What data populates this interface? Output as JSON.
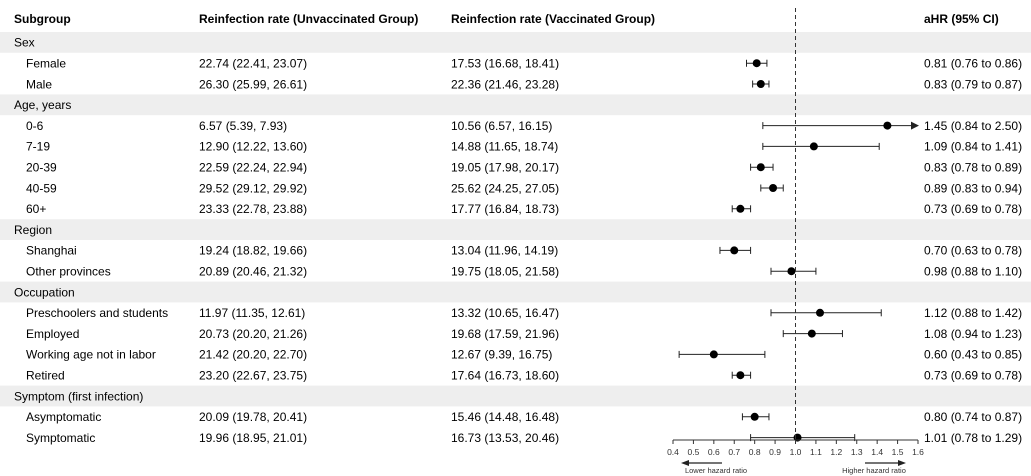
{
  "chart_data": {
    "type": "forest",
    "title": "",
    "columns": {
      "subgroup": "Subgroup",
      "unvaccinated": "Reinfection rate (Unvaccinated Group)",
      "vaccinated": "Reinfection rate (Vaccinated Group)",
      "ahr": "aHR (95% CI)"
    },
    "rows": [
      {
        "kind": "header",
        "label": "Sex"
      },
      {
        "kind": "data",
        "label": "Female",
        "unvac": "22.74 (22.41, 23.07)",
        "vac": "17.53 (16.68, 18.41)",
        "ahr_text": "0.81 (0.76 to 0.86)",
        "hr": 0.81,
        "lo": 0.76,
        "hi": 0.86
      },
      {
        "kind": "data",
        "label": "Male",
        "unvac": "26.30 (25.99, 26.61)",
        "vac": "22.36 (21.46, 23.28)",
        "ahr_text": "0.83 (0.79 to 0.87)",
        "hr": 0.83,
        "lo": 0.79,
        "hi": 0.87
      },
      {
        "kind": "header",
        "label": "Age, years"
      },
      {
        "kind": "data",
        "label": "0-6",
        "unvac": "6.57 (5.39, 7.93)",
        "vac": "10.56 (6.57, 16.15)",
        "ahr_text": "1.45 (0.84 to 2.50)",
        "hr": 1.45,
        "lo": 0.84,
        "hi": 2.5
      },
      {
        "kind": "data",
        "label": "7-19",
        "unvac": "12.90 (12.22, 13.60)",
        "vac": "14.88 (11.65, 18.74)",
        "ahr_text": "1.09 (0.84 to 1.41)",
        "hr": 1.09,
        "lo": 0.84,
        "hi": 1.41
      },
      {
        "kind": "data",
        "label": "20-39",
        "unvac": "22.59 (22.24, 22.94)",
        "vac": "19.05 (17.98, 20.17)",
        "ahr_text": "0.83 (0.78 to 0.89)",
        "hr": 0.83,
        "lo": 0.78,
        "hi": 0.89
      },
      {
        "kind": "data",
        "label": "40-59",
        "unvac": "29.52 (29.12, 29.92)",
        "vac": "25.62 (24.25, 27.05)",
        "ahr_text": "0.89 (0.83 to 0.94)",
        "hr": 0.89,
        "lo": 0.83,
        "hi": 0.94
      },
      {
        "kind": "data",
        "label": "60+",
        "unvac": "23.33 (22.78, 23.88)",
        "vac": "17.77 (16.84, 18.73)",
        "ahr_text": "0.73 (0.69 to 0.78)",
        "hr": 0.73,
        "lo": 0.69,
        "hi": 0.78
      },
      {
        "kind": "header",
        "label": "Region"
      },
      {
        "kind": "data",
        "label": "Shanghai",
        "unvac": "19.24 (18.82, 19.66)",
        "vac": "13.04 (11.96, 14.19)",
        "ahr_text": "0.70 (0.63 to 0.78)",
        "hr": 0.7,
        "lo": 0.63,
        "hi": 0.78
      },
      {
        "kind": "data",
        "label": "Other provinces",
        "unvac": "20.89 (20.46, 21.32)",
        "vac": "19.75 (18.05, 21.58)",
        "ahr_text": "0.98 (0.88 to 1.10)",
        "hr": 0.98,
        "lo": 0.88,
        "hi": 1.1
      },
      {
        "kind": "header",
        "label": "Occupation"
      },
      {
        "kind": "data",
        "label": "Preschoolers and students",
        "unvac": "11.97 (11.35, 12.61)",
        "vac": "13.32 (10.65, 16.47)",
        "ahr_text": "1.12 (0.88 to 1.42)",
        "hr": 1.12,
        "lo": 0.88,
        "hi": 1.42
      },
      {
        "kind": "data",
        "label": "Employed",
        "unvac": "20.73 (20.20, 21.26)",
        "vac": "19.68 (17.59, 21.96)",
        "ahr_text": "1.08 (0.94 to 1.23)",
        "hr": 1.08,
        "lo": 0.94,
        "hi": 1.23
      },
      {
        "kind": "data",
        "label": "Working age not in labor",
        "unvac": "21.42 (20.20, 22.70)",
        "vac": "12.67 (9.39, 16.75)",
        "ahr_text": "0.60 (0.43 to 0.85)",
        "hr": 0.6,
        "lo": 0.43,
        "hi": 0.85
      },
      {
        "kind": "data",
        "label": "Retired",
        "unvac": "23.20 (22.67, 23.75)",
        "vac": "17.64 (16.73, 18.60)",
        "ahr_text": "0.73 (0.69 to 0.78)",
        "hr": 0.73,
        "lo": 0.69,
        "hi": 0.78
      },
      {
        "kind": "header",
        "label": "Symptom (first infection)"
      },
      {
        "kind": "data",
        "label": "Asymptomatic",
        "unvac": "20.09 (19.78, 20.41)",
        "vac": "15.46 (14.48, 16.48)",
        "ahr_text": "0.80 (0.74 to 0.87)",
        "hr": 0.8,
        "lo": 0.74,
        "hi": 0.87
      },
      {
        "kind": "data",
        "label": "Symptomatic",
        "unvac": "19.96 (18.95, 21.01)",
        "vac": "16.73 (13.53, 20.46)",
        "ahr_text": "1.01 (0.78 to 1.29)",
        "hr": 1.01,
        "lo": 0.78,
        "hi": 1.29
      }
    ],
    "x_axis": {
      "min": 0.4,
      "max": 1.6,
      "reference": 1.0,
      "ticks": [
        "0.4",
        "0.5",
        "0.6",
        "0.7",
        "0.8",
        "0.9",
        "1.0",
        "1.1",
        "1.2",
        "1.3",
        "1.4",
        "1.5",
        "1.6"
      ],
      "left_label": "Lower hazard ratio",
      "right_label": "Higher hazard ratio"
    },
    "header_band_color": "#eeeeee"
  }
}
